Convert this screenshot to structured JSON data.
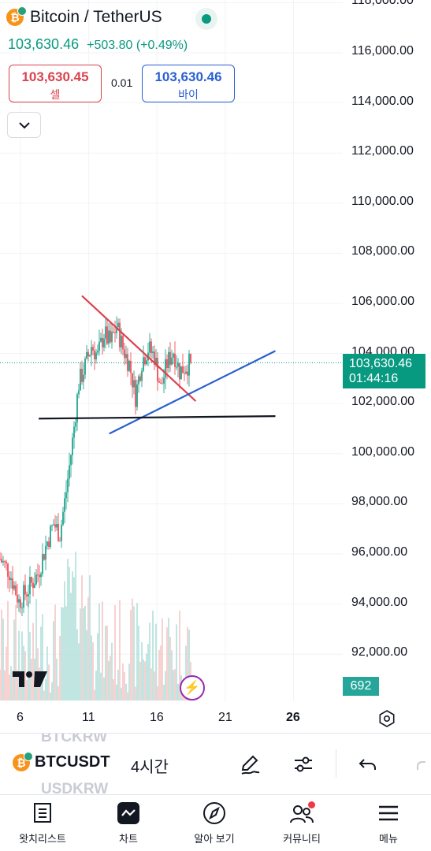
{
  "header": {
    "title": "Bitcoin / TetherUS",
    "last_price": "103,630.46",
    "change": "+503.80 (+0.49%)"
  },
  "trade": {
    "sell_price": "103,630.45",
    "sell_label": "셀",
    "spread": "0.01",
    "buy_price": "103,630.46",
    "buy_label": "바이"
  },
  "price_axis": {
    "ticks": [
      "118,000.00",
      "116,000.00",
      "114,000.00",
      "112,000.00",
      "110,000.00",
      "108,000.00",
      "106,000.00",
      "104,000.00",
      "102,000.00",
      "100,000.00",
      "98,000.00",
      "96,000.00",
      "94,000.00",
      "92,000.00"
    ],
    "current_price": "103,630.46",
    "countdown": "01:44:16",
    "volume_label": "692"
  },
  "time_axis": {
    "ticks": [
      "6",
      "11",
      "16",
      "21",
      "26"
    ]
  },
  "chart_data": {
    "type": "candlestick",
    "symbol": "BTCUSDT",
    "interval": "4시간",
    "y_range": [
      90700,
      118000
    ],
    "current_price": 103630.46,
    "drawings": [
      {
        "type": "trendline",
        "color": "#d9434e",
        "points": [
          [
            "10 12:00",
            106300
          ],
          [
            "18 20:00",
            102100
          ]
        ]
      },
      {
        "type": "trendline",
        "color": "#2a5fd1",
        "points": [
          [
            "12 12:00",
            100800
          ],
          [
            "24 16:00",
            104100
          ]
        ]
      },
      {
        "type": "horizontal",
        "color": "#131722",
        "points": [
          [
            "7 08:00",
            101400
          ],
          [
            "24 16:00",
            101500
          ]
        ]
      }
    ]
  },
  "colors": {
    "up": "#089981",
    "down": "#f23645",
    "vol_up": "#b2dfdb",
    "vol_down": "#f7c6c6",
    "accent": "#2962ff"
  },
  "toolbar": {
    "symbol": "BTCUSDT",
    "ghost_above": "BTCKRW",
    "ghost_below": "USDKRW",
    "interval": "4시간",
    "icons": [
      "pencil-icon",
      "sliders-icon",
      "undo-icon",
      "redo-icon"
    ]
  },
  "nav": {
    "items": [
      {
        "label": "왓치리스트",
        "icon": "watchlist-icon"
      },
      {
        "label": "차트",
        "icon": "chart-icon"
      },
      {
        "label": "알아 보기",
        "icon": "compass-icon"
      },
      {
        "label": "커뮤니티",
        "icon": "community-icon"
      },
      {
        "label": "메뉴",
        "icon": "menu-icon"
      }
    ]
  }
}
